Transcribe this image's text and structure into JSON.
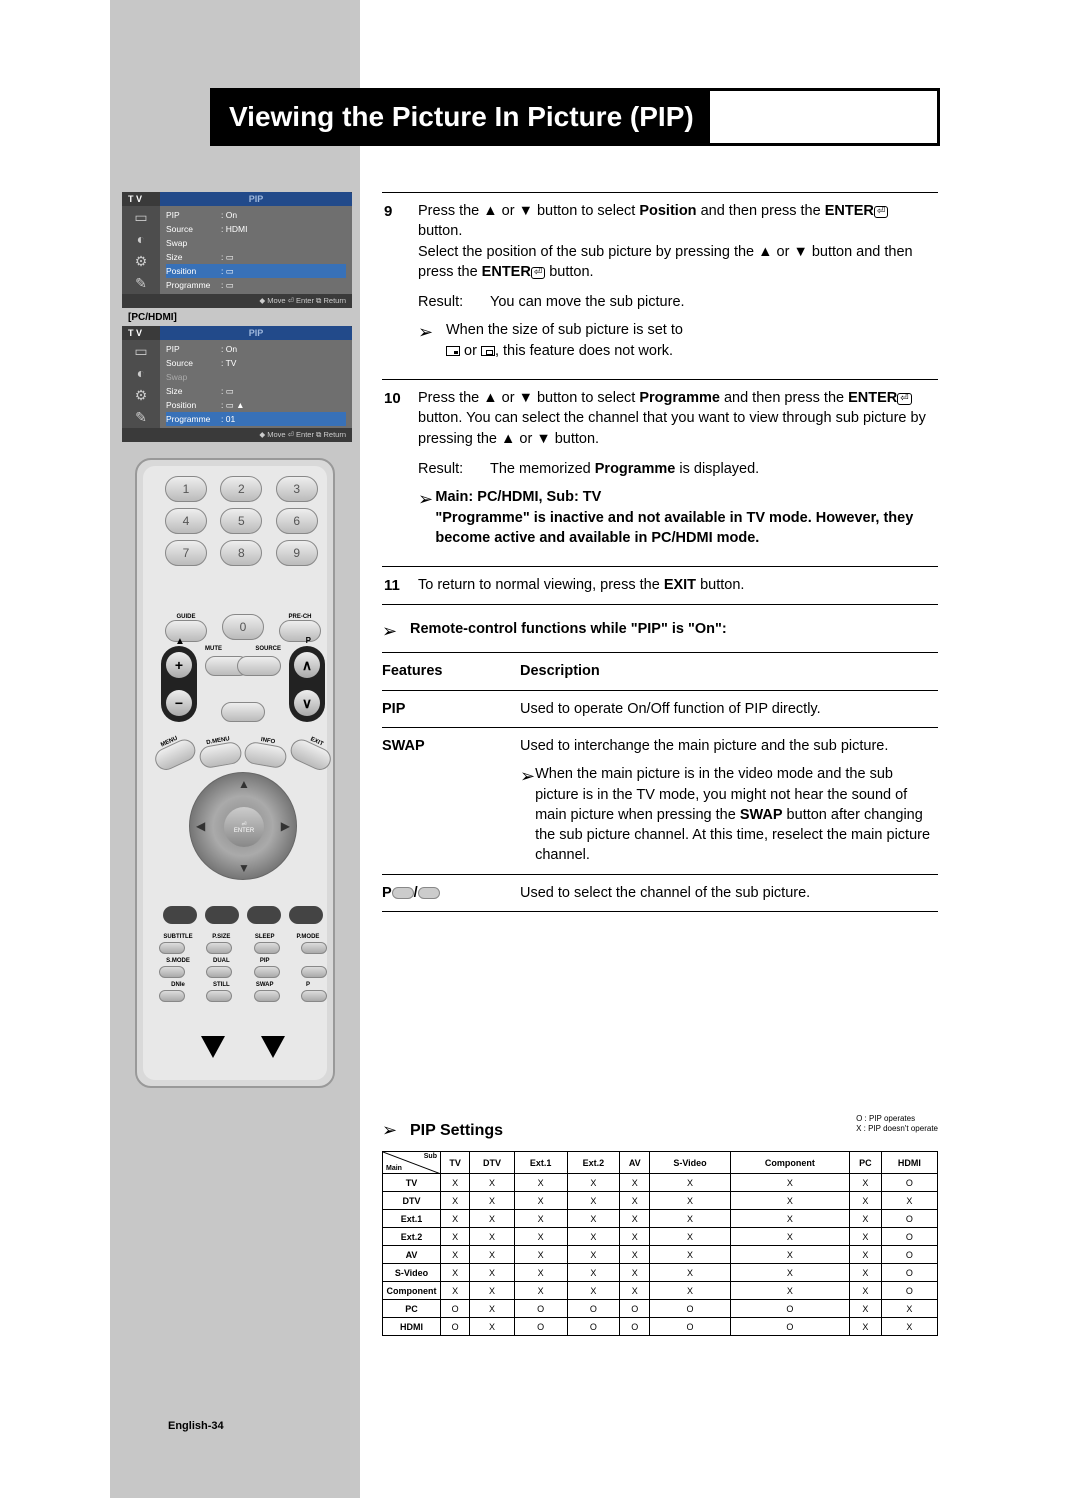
{
  "title": "Viewing the Picture In Picture (PIP)",
  "pageNumber": "English-34",
  "osd": {
    "tv": "T V",
    "pipTab": "PIP",
    "footer": "◆ Move    ⏎ Enter    ⧉ Return",
    "menu1": {
      "rows": [
        {
          "label": "PIP",
          "value": ": On"
        },
        {
          "label": "Source",
          "value": ": HDMI"
        },
        {
          "label": "Swap",
          "value": ""
        },
        {
          "label": "Size",
          "value": ": ▭"
        },
        {
          "label": "Position",
          "value": ": ▭"
        },
        {
          "label": "Programme",
          "value": ": ▭"
        }
      ],
      "highlightIndex": 4
    },
    "pchdmiLabel": "[PC/HDMI]",
    "menu2": {
      "rows": [
        {
          "label": "PIP",
          "value": ": On"
        },
        {
          "label": "Source",
          "value": ": TV"
        },
        {
          "label": "Swap",
          "value": ""
        },
        {
          "label": "Size",
          "value": ": ▭"
        },
        {
          "label": "Position",
          "value": ": ▭  ▲"
        },
        {
          "label": "Programme",
          "value": ":  01"
        }
      ],
      "highlightIndex": 5
    }
  },
  "remote": {
    "numLabels": [
      "1",
      "2",
      "3",
      "4",
      "5",
      "6",
      "7",
      "8",
      "9"
    ],
    "guide": "GUIDE",
    "zero": "0",
    "prech": "PRE-CH",
    "mute": "MUTE",
    "p": "P",
    "source": "SOURCE",
    "menu": "MENU",
    "dmenu": "D.MENU",
    "info": "INFO",
    "exit": "EXIT",
    "enter": "ENTER",
    "row1": [
      "SUBTITLE",
      "P.SIZE",
      "SLEEP",
      "P.MODE"
    ],
    "row2": [
      "S.MODE",
      "DUAL",
      "PIP",
      ""
    ],
    "row3": [
      "DNIe",
      "STILL",
      "SWAP",
      "P"
    ]
  },
  "steps": {
    "s9": {
      "num": "9",
      "l1": "Press the ▲ or ▼ button to select ",
      "position": "Position",
      "l2": " and then press the ",
      "enter": "ENTER",
      "l3": " button.",
      "l4": "Select the position of the sub picture by pressing the ▲ or ▼ button and then press the ",
      "l5": " button.",
      "resultLabel": "Result:",
      "resultText": "You can move the sub picture.",
      "note1": "When the size of sub picture is set to",
      "note2": ", this feature does not work."
    },
    "s10": {
      "num": "10",
      "l1": "Press the ▲ or ▼ button to select ",
      "programme": "Programme",
      "l2": " and then press the ",
      "enter": "ENTER",
      "l3": " button. You can select the channel that you want to view through sub picture by pressing the ▲ or ▼ button.",
      "resultLabel": "Result:",
      "resultText1": "The memorized ",
      "resultText2": " is displayed.",
      "noteHead": "Main: PC/HDMI, Sub: TV",
      "noteBody": "\"Programme\" is inactive and not available in TV mode. However, they become active and available in PC/HDMI mode."
    },
    "s11": {
      "num": "11",
      "text1": "To return to normal viewing, press the ",
      "exit": "EXIT",
      "text2": " button."
    }
  },
  "features": {
    "heading": "Remote-control functions while \"PIP\" is \"On\":",
    "colFeatures": "Features",
    "colDesc": "Description",
    "pip": {
      "name": "PIP",
      "desc": "Used to operate On/Off function of PIP directly."
    },
    "swap": {
      "name": "SWAP",
      "desc": "Used to interchange the main picture and the sub picture.",
      "note": "When the main picture is in the video mode and the sub picture is in the TV mode, you might not hear the sound of main picture when pressing the ",
      "swapBold": "SWAP",
      "note2": " button after changing the sub picture channel. At this time, reselect the main picture channel."
    },
    "p": {
      "name": "P",
      "desc": "Used to select the channel of the sub picture."
    }
  },
  "settings": {
    "heading": "PIP Settings",
    "legend1": "O :   PIP operates",
    "legend2": "X :   PIP doesn't operate",
    "cornerSub": "Sub",
    "cornerMain": "Main",
    "columns": [
      "TV",
      "DTV",
      "Ext.1",
      "Ext.2",
      "AV",
      "S-Video",
      "Component",
      "PC",
      "HDMI"
    ],
    "rows": [
      {
        "label": "TV",
        "cells": [
          "X",
          "X",
          "X",
          "X",
          "X",
          "X",
          "X",
          "X",
          "O"
        ]
      },
      {
        "label": "DTV",
        "cells": [
          "X",
          "X",
          "X",
          "X",
          "X",
          "X",
          "X",
          "X",
          "X"
        ]
      },
      {
        "label": "Ext.1",
        "cells": [
          "X",
          "X",
          "X",
          "X",
          "X",
          "X",
          "X",
          "X",
          "O"
        ]
      },
      {
        "label": "Ext.2",
        "cells": [
          "X",
          "X",
          "X",
          "X",
          "X",
          "X",
          "X",
          "X",
          "O"
        ]
      },
      {
        "label": "AV",
        "cells": [
          "X",
          "X",
          "X",
          "X",
          "X",
          "X",
          "X",
          "X",
          "O"
        ]
      },
      {
        "label": "S-Video",
        "cells": [
          "X",
          "X",
          "X",
          "X",
          "X",
          "X",
          "X",
          "X",
          "O"
        ]
      },
      {
        "label": "Component",
        "cells": [
          "X",
          "X",
          "X",
          "X",
          "X",
          "X",
          "X",
          "X",
          "O"
        ]
      },
      {
        "label": "PC",
        "cells": [
          "O",
          "X",
          "O",
          "O",
          "O",
          "O",
          "O",
          "X",
          "X"
        ]
      },
      {
        "label": "HDMI",
        "cells": [
          "O",
          "X",
          "O",
          "O",
          "O",
          "O",
          "O",
          "X",
          "X"
        ]
      }
    ]
  }
}
